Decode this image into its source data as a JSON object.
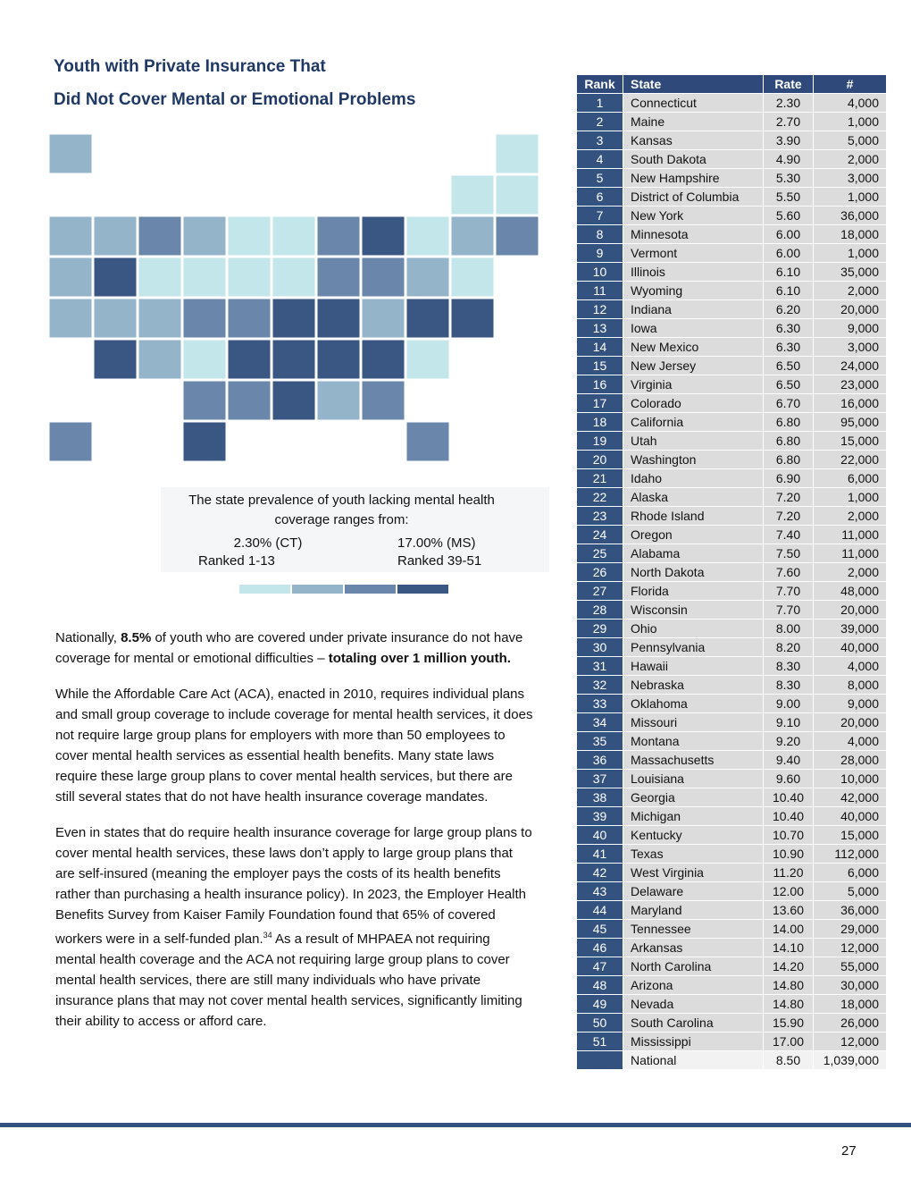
{
  "title": [
    "Youth with Private Insurance That",
    "Did Not Cover Mental or Emotional Problems"
  ],
  "map_caption": {
    "text": "The state prevalence of youth lacking mental health coverage ranges from:",
    "low": {
      "value": "2.30% (CT)",
      "rank": "Ranked 1-13"
    },
    "high": {
      "value": "17.00% (MS)",
      "rank": "Ranked 39-51"
    },
    "legend_colors": [
      "#c3e6ea",
      "#93b4c9",
      "#6a87ab",
      "#3a5683"
    ]
  },
  "paragraphs": [
    [
      {
        "text": "Nationally, "
      },
      {
        "text": "8.5%",
        "bold": true
      },
      {
        "text": " of youth who are covered under private insurance do not have coverage for mental or emotional difficulties – "
      },
      {
        "text": "totaling over 1 million youth.",
        "bold": true
      }
    ],
    [
      {
        "text": "While the Affordable Care Act (ACA), enacted in 2010, requires individual plans and small group coverage to include coverage for mental health services, it does not require large group plans for employers with more than 50 employees to cover mental health services as essential health benefits. Many state laws require these large group plans to cover mental health services, but there are still several states that do not have health insurance coverage mandates."
      }
    ],
    [
      {
        "text": "Even in states that do require health insurance coverage for large group plans to cover mental health services, these laws don’t apply to large group plans that are self-insured (meaning the employer pays the costs of its health benefits rather than purchasing a health insurance policy). In 2023, the Employer Health Benefits Survey from Kaiser Family Foundation found that 65% of covered workers were in a self-funded plan."
      },
      {
        "text": "34",
        "sup": true
      },
      {
        "text": " As a result of MHPAEA not requiring mental health coverage and the ACA not requiring large group plans to cover mental health services, there are still many individuals who have private insurance plans that may not cover mental health services, significantly limiting their ability to access or afford care."
      }
    ]
  ],
  "table": {
    "headers": [
      "Rank",
      "State",
      "Rate",
      "#"
    ],
    "rows": [
      [
        "1",
        "Connecticut",
        "2.30",
        "4,000"
      ],
      [
        "2",
        "Maine",
        "2.70",
        "1,000"
      ],
      [
        "3",
        "Kansas",
        "3.90",
        "5,000"
      ],
      [
        "4",
        "South Dakota",
        "4.90",
        "2,000"
      ],
      [
        "5",
        "New Hampshire",
        "5.30",
        "3,000"
      ],
      [
        "6",
        "District of Columbia",
        "5.50",
        "1,000"
      ],
      [
        "7",
        "New York",
        "5.60",
        "36,000"
      ],
      [
        "8",
        "Minnesota",
        "6.00",
        "18,000"
      ],
      [
        "9",
        "Vermont",
        "6.00",
        "1,000"
      ],
      [
        "10",
        "Illinois",
        "6.10",
        "35,000"
      ],
      [
        "11",
        "Wyoming",
        "6.10",
        "2,000"
      ],
      [
        "12",
        "Indiana",
        "6.20",
        "20,000"
      ],
      [
        "13",
        "Iowa",
        "6.30",
        "9,000"
      ],
      [
        "14",
        "New Mexico",
        "6.30",
        "3,000"
      ],
      [
        "15",
        "New Jersey",
        "6.50",
        "24,000"
      ],
      [
        "16",
        "Virginia",
        "6.50",
        "23,000"
      ],
      [
        "17",
        "Colorado",
        "6.70",
        "16,000"
      ],
      [
        "18",
        "California",
        "6.80",
        "95,000"
      ],
      [
        "19",
        "Utah",
        "6.80",
        "15,000"
      ],
      [
        "20",
        "Washington",
        "6.80",
        "22,000"
      ],
      [
        "21",
        "Idaho",
        "6.90",
        "6,000"
      ],
      [
        "22",
        "Alaska",
        "7.20",
        "1,000"
      ],
      [
        "23",
        "Rhode Island",
        "7.20",
        "2,000"
      ],
      [
        "24",
        "Oregon",
        "7.40",
        "11,000"
      ],
      [
        "25",
        "Alabama",
        "7.50",
        "11,000"
      ],
      [
        "26",
        "North Dakota",
        "7.60",
        "2,000"
      ],
      [
        "27",
        "Florida",
        "7.70",
        "48,000"
      ],
      [
        "28",
        "Wisconsin",
        "7.70",
        "20,000"
      ],
      [
        "29",
        "Ohio",
        "8.00",
        "39,000"
      ],
      [
        "30",
        "Pennsylvania",
        "8.20",
        "40,000"
      ],
      [
        "31",
        "Hawaii",
        "8.30",
        "4,000"
      ],
      [
        "32",
        "Nebraska",
        "8.30",
        "8,000"
      ],
      [
        "33",
        "Oklahoma",
        "9.00",
        "9,000"
      ],
      [
        "34",
        "Missouri",
        "9.10",
        "20,000"
      ],
      [
        "35",
        "Montana",
        "9.20",
        "4,000"
      ],
      [
        "36",
        "Massachusetts",
        "9.40",
        "28,000"
      ],
      [
        "37",
        "Louisiana",
        "9.60",
        "10,000"
      ],
      [
        "38",
        "Georgia",
        "10.40",
        "42,000"
      ],
      [
        "39",
        "Michigan",
        "10.40",
        "40,000"
      ],
      [
        "40",
        "Kentucky",
        "10.70",
        "15,000"
      ],
      [
        "41",
        "Texas",
        "10.90",
        "112,000"
      ],
      [
        "42",
        "West Virginia",
        "11.20",
        "6,000"
      ],
      [
        "43",
        "Delaware",
        "12.00",
        "5,000"
      ],
      [
        "44",
        "Maryland",
        "13.60",
        "36,000"
      ],
      [
        "45",
        "Tennessee",
        "14.00",
        "29,000"
      ],
      [
        "46",
        "Arkansas",
        "14.10",
        "12,000"
      ],
      [
        "47",
        "North Carolina",
        "14.20",
        "55,000"
      ],
      [
        "48",
        "Arizona",
        "14.80",
        "30,000"
      ],
      [
        "49",
        "Nevada",
        "14.80",
        "18,000"
      ],
      [
        "50",
        "South Carolina",
        "15.90",
        "26,000"
      ],
      [
        "51",
        "Mississippi",
        "17.00",
        "12,000"
      ]
    ],
    "national": [
      "National",
      "8.50",
      "1,039,000"
    ]
  },
  "page_number": "27"
}
